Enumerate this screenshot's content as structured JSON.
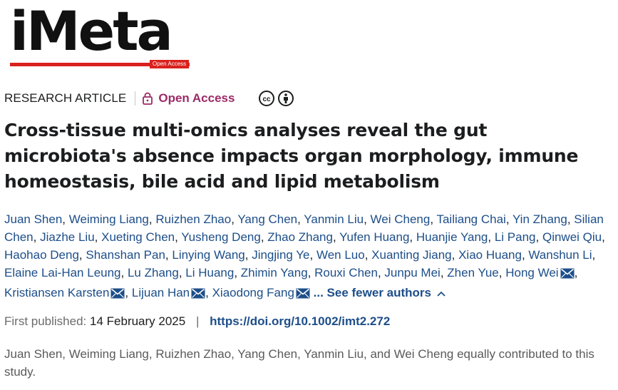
{
  "journal": {
    "logo_text": "iMeta",
    "logo_badge": "Open Access"
  },
  "article_meta": {
    "type": "RESEARCH ARTICLE",
    "access": "Open Access"
  },
  "title": "Cross-tissue multi-omics analyses reveal the gut microbiota's absence impacts organ morphology, immune homeostasis, bile acid and lipid metabolism",
  "authors": {
    "list": [
      {
        "name": "Juan Shen",
        "email": false
      },
      {
        "name": "Weiming Liang",
        "email": false
      },
      {
        "name": "Ruizhen Zhao",
        "email": false
      },
      {
        "name": "Yang Chen",
        "email": false
      },
      {
        "name": "Yanmin Liu",
        "email": false
      },
      {
        "name": "Wei Cheng",
        "email": false
      },
      {
        "name": "Tailiang Chai",
        "email": false
      },
      {
        "name": "Yin Zhang",
        "email": false
      },
      {
        "name": "Silian Chen",
        "email": false
      },
      {
        "name": "Jiazhe Liu",
        "email": false
      },
      {
        "name": "Xueting Chen",
        "email": false
      },
      {
        "name": "Yusheng Deng",
        "email": false
      },
      {
        "name": "Zhao Zhang",
        "email": false
      },
      {
        "name": "Yufen Huang",
        "email": false
      },
      {
        "name": "Huanjie Yang",
        "email": false
      },
      {
        "name": "Li Pang",
        "email": false
      },
      {
        "name": "Qinwei Qiu",
        "email": false
      },
      {
        "name": "Haohao Deng",
        "email": false
      },
      {
        "name": "Shanshan Pan",
        "email": false
      },
      {
        "name": "Linying Wang",
        "email": false
      },
      {
        "name": "Jingjing Ye",
        "email": false
      },
      {
        "name": "Wen Luo",
        "email": false
      },
      {
        "name": "Xuanting Jiang",
        "email": false
      },
      {
        "name": "Xiao Huang",
        "email": false
      },
      {
        "name": "Wanshun Li",
        "email": false
      },
      {
        "name": "Elaine Lai-Han Leung",
        "email": false
      },
      {
        "name": "Lu Zhang",
        "email": false
      },
      {
        "name": "Li Huang",
        "email": false
      },
      {
        "name": "Zhimin Yang",
        "email": false
      },
      {
        "name": "Rouxi Chen",
        "email": false
      },
      {
        "name": "Junpu Mei",
        "email": false
      },
      {
        "name": "Zhen Yue",
        "email": false
      },
      {
        "name": "Hong Wei",
        "email": true
      },
      {
        "name": "Kristiansen Karsten",
        "email": true
      },
      {
        "name": "Lijuan Han",
        "email": true
      },
      {
        "name": "Xiaodong Fang",
        "email": true
      }
    ],
    "toggle_label": "... See fewer authors"
  },
  "publication": {
    "first_published_label": "First published:",
    "first_published_date": "14 February 2025",
    "separator": "|",
    "doi": "https://doi.org/10.1002/imt2.272"
  },
  "note": "Juan Shen, Weiming Liang, Ruizhen Zhao, Yang Chen, Yanmin Liu, and Wei Cheng equally contributed to this study.",
  "icons": {
    "lock": "lock-icon",
    "cc": "creative-commons-icon",
    "by": "attribution-icon",
    "mail": "envelope-icon",
    "chevron": "chevron-up-icon"
  },
  "colors": {
    "brand_red": "#d9211d",
    "link_blue": "#1d4e89",
    "open_access": "#9c2a66"
  }
}
